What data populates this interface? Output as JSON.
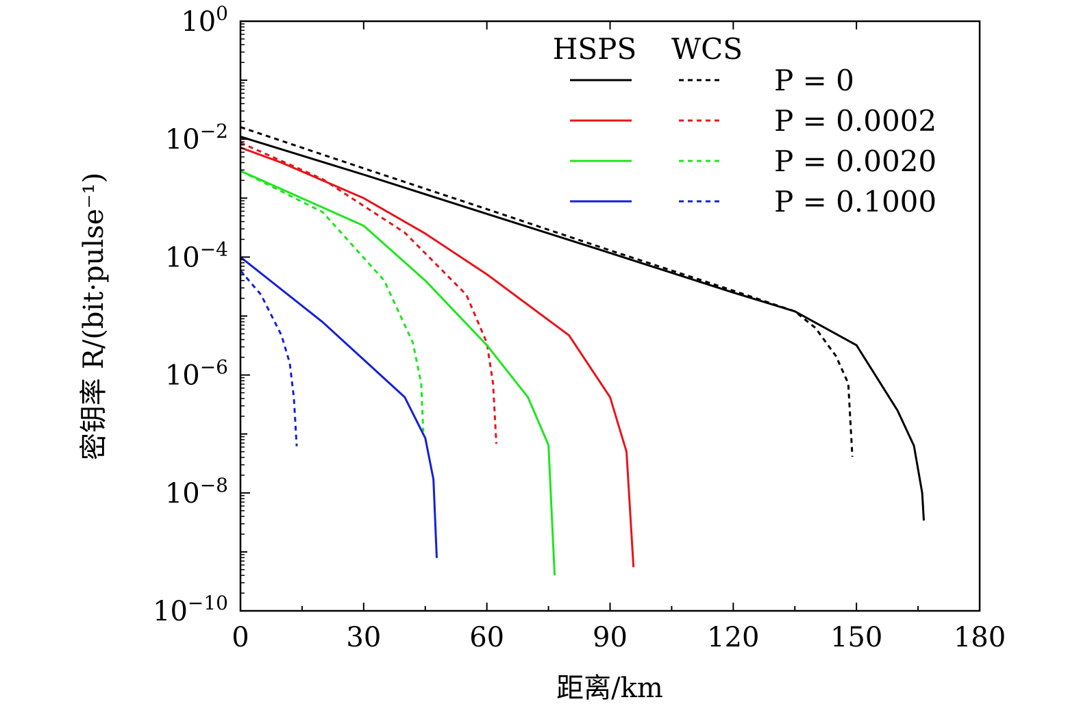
{
  "chart_data": {
    "type": "line",
    "xlabel": "距离/km",
    "ylabel": "密钥率 R/(bit·pulse⁻¹)",
    "xlim": [
      0,
      180
    ],
    "ylim": [
      1e-10,
      1
    ],
    "yscale": "log",
    "grid": false,
    "legend_placement": "top-right",
    "legend_headers": [
      "HSPS",
      "WCS"
    ],
    "x_ticks": [
      "0",
      "30",
      "60",
      "90",
      "120",
      "150",
      "180"
    ],
    "y_ticks": [
      {
        "base": "10",
        "exp": "0"
      },
      {
        "base": "10",
        "exp": "−2"
      },
      {
        "base": "10",
        "exp": "−4"
      },
      {
        "base": "10",
        "exp": "−6"
      },
      {
        "base": "10",
        "exp": "−8"
      },
      {
        "base": "10",
        "exp": "−10"
      }
    ],
    "series": [
      {
        "name": "P = 0",
        "source": "HSPS",
        "style": "solid",
        "color": "#000000",
        "x": [
          0,
          30,
          60,
          88,
          120,
          135,
          150,
          160,
          164,
          166,
          166.4
        ],
        "y": [
          0.011,
          0.0025,
          0.00054,
          0.00013,
          2.5e-05,
          1.2e-05,
          3.2e-06,
          2.5e-07,
          6.3e-08,
          1e-08,
          3.4e-09
        ]
      },
      {
        "name": "P = 0",
        "source": "WCS",
        "style": "dashed",
        "color": "#000000",
        "x": [
          0,
          30,
          60,
          90,
          120,
          135,
          140,
          145,
          148,
          149
        ],
        "y": [
          0.016,
          0.0032,
          0.00065,
          0.00013,
          2.7e-05,
          1.2e-05,
          6.3e-06,
          2.1e-06,
          7.2e-07,
          4.1e-08
        ]
      },
      {
        "name": "P = 0.0002",
        "source": "HSPS",
        "style": "solid",
        "color": "#e8141b",
        "x": [
          0,
          10,
          30,
          45,
          60,
          80,
          90,
          94,
          95.7
        ],
        "y": [
          0.0072,
          0.004,
          0.001,
          0.00025,
          5.1e-05,
          4.7e-06,
          4.2e-07,
          5e-08,
          5.5e-10
        ]
      },
      {
        "name": "P = 0.0002",
        "source": "WCS",
        "style": "dashed",
        "color": "#e8141b",
        "x": [
          0,
          20,
          40,
          55,
          60,
          61.5,
          62.3
        ],
        "y": [
          0.0087,
          0.0021,
          0.00026,
          2.3e-05,
          3.5e-06,
          7.2e-07,
          6.8e-08
        ]
      },
      {
        "name": "P = 0.0020",
        "source": "HSPS",
        "style": "solid",
        "color": "#1ee61e",
        "x": [
          0,
          30,
          45,
          60,
          70,
          75,
          76.5
        ],
        "y": [
          0.0029,
          0.00034,
          4e-05,
          3.2e-06,
          4.2e-07,
          6.5e-08,
          4e-10
        ]
      },
      {
        "name": "P = 0.0020",
        "source": "WCS",
        "style": "dashed",
        "color": "#1ee61e",
        "x": [
          0,
          20,
          35,
          42,
          44,
          44.5
        ],
        "y": [
          0.0029,
          0.00058,
          4e-05,
          3.5e-06,
          7.2e-07,
          1.1e-07
        ]
      },
      {
        "name": "P = 0.1000",
        "source": "HSPS",
        "style": "solid",
        "color": "#1420d8",
        "x": [
          0,
          20,
          40,
          45,
          47,
          47.8
        ],
        "y": [
          0.0001,
          7.9e-06,
          4.2e-07,
          8.5e-08,
          1.7e-08,
          7.9e-10
        ]
      },
      {
        "name": "P = 0.1000",
        "source": "WCS",
        "style": "dashed",
        "color": "#1420d8",
        "x": [
          0,
          5,
          10,
          12,
          13,
          13.7
        ],
        "y": [
          5.9e-05,
          2.3e-05,
          4.7e-06,
          1.6e-06,
          4.2e-07,
          6.2e-08
        ]
      }
    ],
    "legend_labels": [
      "P = 0",
      "P = 0.0002",
      "P = 0.0020",
      "P = 0.1000"
    ]
  }
}
